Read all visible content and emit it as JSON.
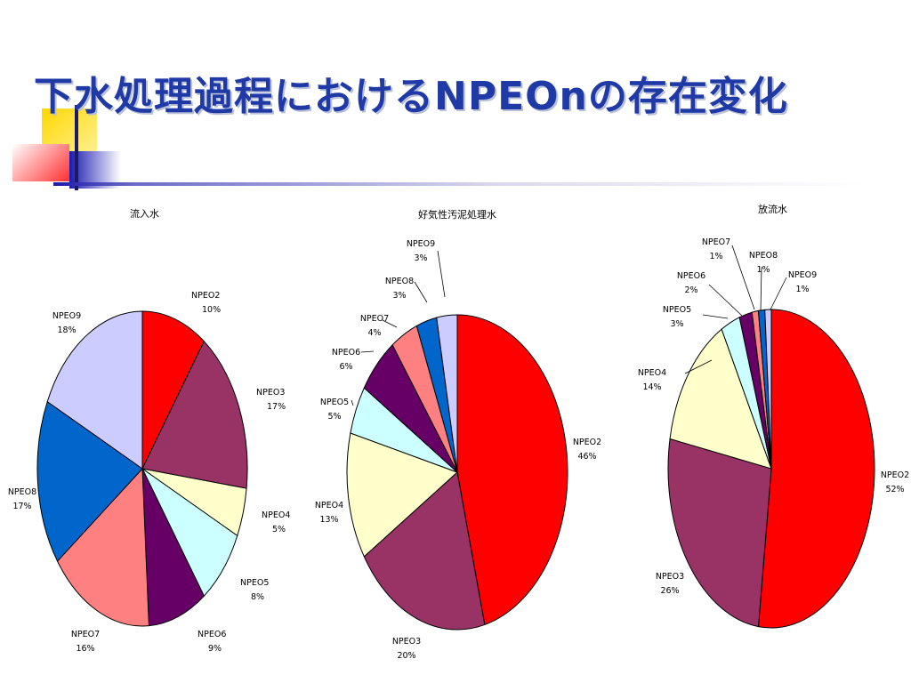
{
  "slide": {
    "title": "下水処理過程におけるNPEOnの存在変化"
  },
  "colors": {
    "title": "#1f3aa6",
    "NPEO2": "#ff0000",
    "NPEO3": "#993366",
    "NPEO4": "#ffffcc",
    "NPEO5": "#ccffff",
    "NPEO6": "#660066",
    "NPEO7": "#ff8080",
    "NPEO8": "#0066cc",
    "NPEO9": "#ccccff"
  },
  "chart_data": [
    {
      "type": "pie",
      "title": "流入水",
      "categories": [
        "NPEO2",
        "NPEO3",
        "NPEO4",
        "NPEO5",
        "NPEO6",
        "NPEO7",
        "NPEO8",
        "NPEO9"
      ],
      "values": [
        10,
        17,
        5,
        8,
        9,
        16,
        17,
        18
      ],
      "labels": [
        "10%",
        "17%",
        "5%",
        "8%",
        "9%",
        "16%",
        "17%",
        "18%"
      ]
    },
    {
      "type": "pie",
      "title": "好気性汚泥処理水",
      "categories": [
        "NPEO2",
        "NPEO3",
        "NPEO4",
        "NPEO5",
        "NPEO6",
        "NPEO7",
        "NPEO8",
        "NPEO9"
      ],
      "values": [
        46,
        20,
        13,
        5,
        6,
        4,
        3,
        3
      ],
      "labels": [
        "46%",
        "20%",
        "13%",
        "5%",
        "6%",
        "4%",
        "3%",
        "3%"
      ]
    },
    {
      "type": "pie",
      "title": "放流水",
      "categories": [
        "NPEO2",
        "NPEO3",
        "NPEO4",
        "NPEO5",
        "NPEO6",
        "NPEO7",
        "NPEO8",
        "NPEO9"
      ],
      "values": [
        52,
        26,
        14,
        3,
        2,
        1,
        1,
        1
      ],
      "labels": [
        "52%",
        "26%",
        "14%",
        "3%",
        "2%",
        "1%",
        "1%",
        "1%"
      ]
    }
  ]
}
